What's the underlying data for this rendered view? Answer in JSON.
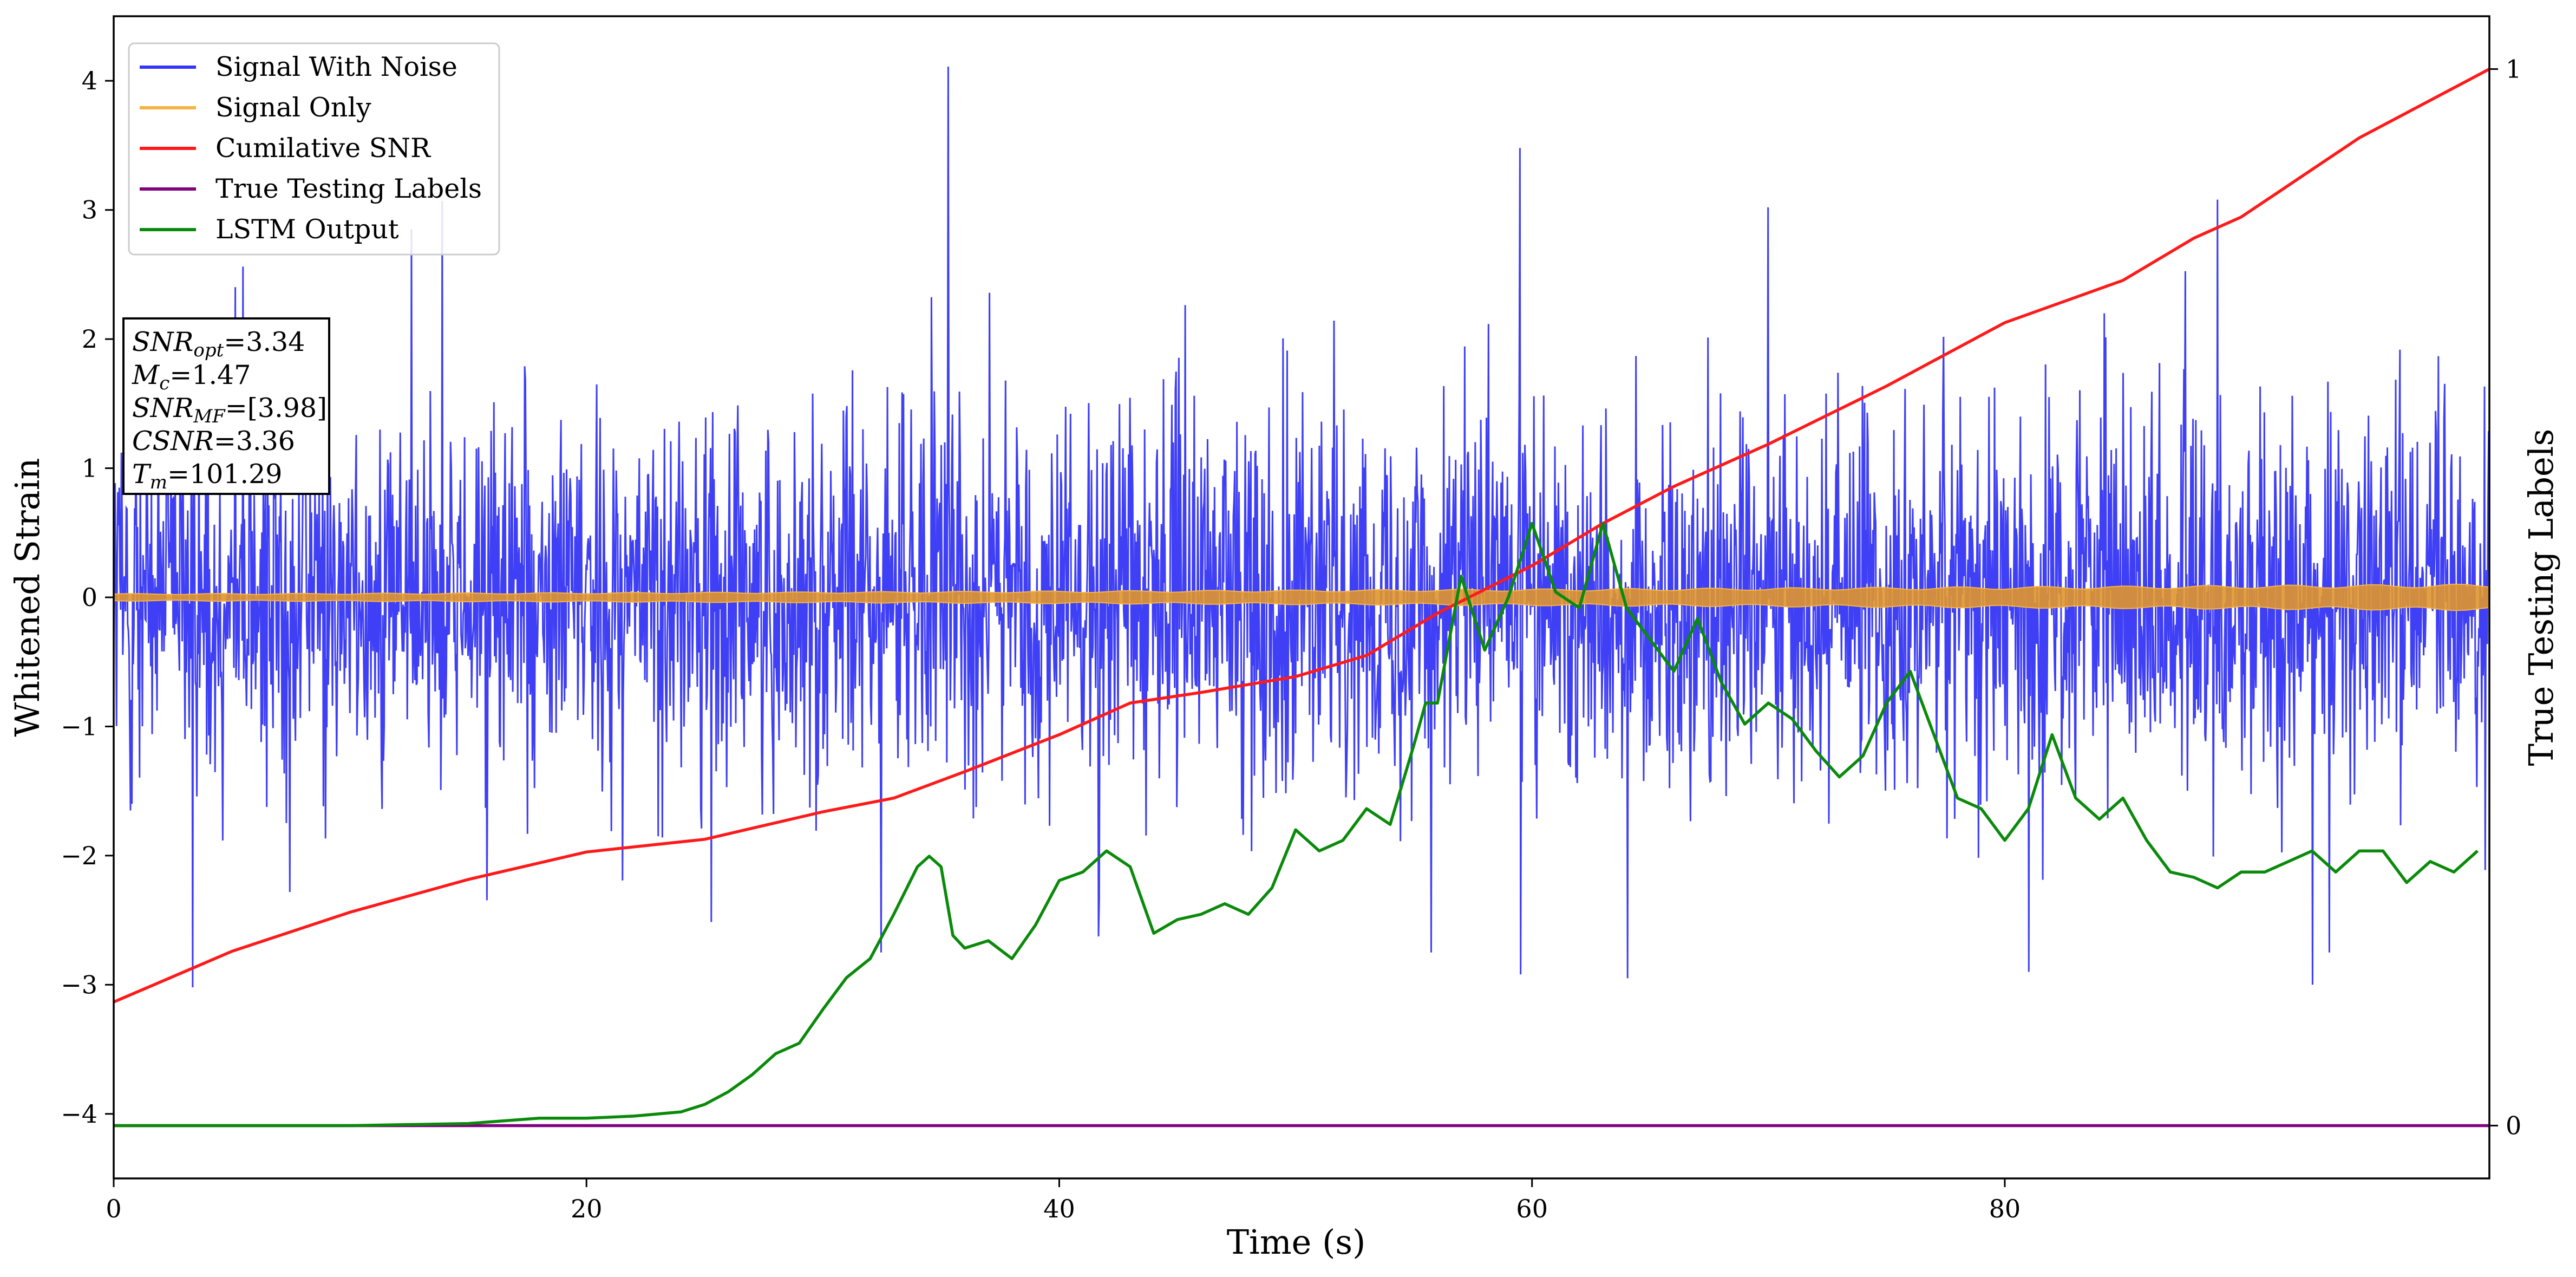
{
  "chart_data": {
    "type": "line",
    "title": "",
    "xlabel": "Time (s)",
    "ylabel": "Whitened Strain",
    "ylabel_right": "True Testing Labels",
    "xlim": [
      0,
      100.5
    ],
    "ylim": [
      -4.5,
      4.5
    ],
    "ylim_right": [
      -0.05,
      1.05
    ],
    "x_ticks": [
      0,
      20,
      40,
      60,
      80
    ],
    "y_ticks": [
      -4,
      -3,
      -2,
      -1,
      0,
      1,
      2,
      3,
      4
    ],
    "y_right_ticks": [
      0,
      1
    ],
    "legend_position": "upper-left",
    "grid": false,
    "series": [
      {
        "name": "Signal With Noise",
        "axis": "left",
        "color": "#3535f5",
        "kind": "noise-band",
        "x_range": [
          0,
          100.5
        ],
        "typical_amplitude": 1.3,
        "max": 4.11,
        "min": -3.02,
        "notable_peaks": [
          [
            35.3,
            4.11
          ],
          [
            59.5,
            3.48
          ],
          [
            13.9,
            3.07
          ],
          [
            89.0,
            3.08
          ],
          [
            70.0,
            3.02
          ]
        ],
        "notable_troughs": [
          [
            3.3,
            -3.02
          ],
          [
            59.5,
            -2.92
          ],
          [
            64.0,
            -2.95
          ],
          [
            81.0,
            -2.9
          ],
          [
            93.0,
            -3.0
          ]
        ]
      },
      {
        "name": "Signal Only",
        "axis": "left",
        "color": "#f5b342",
        "kind": "chirp-band",
        "x_range": [
          0,
          100.5
        ],
        "amplitude_start": 0.025,
        "amplitude_end": 0.09
      },
      {
        "name": "Cumilative SNR",
        "axis": "right",
        "color": "#ff1a1a",
        "x": [
          0,
          5,
          10,
          15,
          20,
          25,
          30,
          33,
          36,
          40,
          43,
          46,
          50,
          53,
          56,
          60,
          63,
          66,
          70,
          75,
          80,
          85,
          88,
          90,
          95,
          100.5
        ],
        "y": [
          0.117,
          0.165,
          0.202,
          0.233,
          0.259,
          0.271,
          0.297,
          0.31,
          0.335,
          0.37,
          0.4,
          0.41,
          0.425,
          0.445,
          0.485,
          0.53,
          0.57,
          0.605,
          0.645,
          0.7,
          0.76,
          0.8,
          0.84,
          0.86,
          0.935,
          1.0
        ]
      },
      {
        "name": "True Testing Labels",
        "axis": "right",
        "color": "#800080",
        "x": [
          0,
          100.5
        ],
        "y": [
          0,
          0
        ]
      },
      {
        "name": "LSTM Output",
        "axis": "right",
        "color": "#0a8a0a",
        "x": [
          0,
          10,
          15,
          18,
          20,
          22,
          24,
          25,
          26,
          27,
          28,
          29,
          30,
          31,
          32,
          33,
          34,
          34.5,
          35,
          35.5,
          36,
          37,
          38,
          39,
          40,
          41,
          42,
          43,
          44,
          45,
          46,
          47,
          48,
          49,
          50,
          51,
          52,
          53,
          54,
          55,
          55.5,
          56,
          57,
          58,
          59,
          60,
          61,
          62,
          63,
          64,
          65,
          66,
          67,
          68,
          69,
          70,
          71,
          72,
          73,
          74,
          75,
          76,
          77,
          78,
          79,
          80,
          81,
          82,
          83,
          84,
          85,
          86,
          87,
          88,
          89,
          90,
          91,
          92,
          93,
          94,
          95,
          96,
          97,
          98,
          99,
          100
        ],
        "y": [
          0,
          0.0,
          0.002,
          0.007,
          0.007,
          0.009,
          0.013,
          0.02,
          0.032,
          0.048,
          0.068,
          0.078,
          0.11,
          0.14,
          0.158,
          0.2,
          0.245,
          0.255,
          0.245,
          0.18,
          0.168,
          0.175,
          0.158,
          0.19,
          0.232,
          0.24,
          0.26,
          0.245,
          0.182,
          0.195,
          0.2,
          0.21,
          0.2,
          0.225,
          0.28,
          0.26,
          0.27,
          0.3,
          0.285,
          0.36,
          0.4,
          0.4,
          0.52,
          0.45,
          0.5,
          0.57,
          0.505,
          0.49,
          0.57,
          0.49,
          0.46,
          0.43,
          0.48,
          0.42,
          0.38,
          0.4,
          0.385,
          0.355,
          0.33,
          0.35,
          0.4,
          0.43,
          0.37,
          0.31,
          0.3,
          0.27,
          0.3,
          0.37,
          0.31,
          0.29,
          0.31,
          0.27,
          0.24,
          0.235,
          0.225,
          0.24,
          0.24,
          0.25,
          0.26,
          0.24,
          0.26,
          0.26,
          0.23,
          0.25,
          0.24,
          0.26
        ]
      }
    ],
    "annotation": {
      "lines": [
        {
          "base": "SNR",
          "sub": "opt",
          "value": "=3.34"
        },
        {
          "base": "M",
          "sub": "c",
          "value": "=1.47"
        },
        {
          "base": "SNR",
          "sub": "MF",
          "value": "=[3.98]"
        },
        {
          "base": "CSNR",
          "sub": "",
          "value": "=3.36"
        },
        {
          "base": "T",
          "sub": "m",
          "value": "=101.29"
        }
      ]
    }
  }
}
